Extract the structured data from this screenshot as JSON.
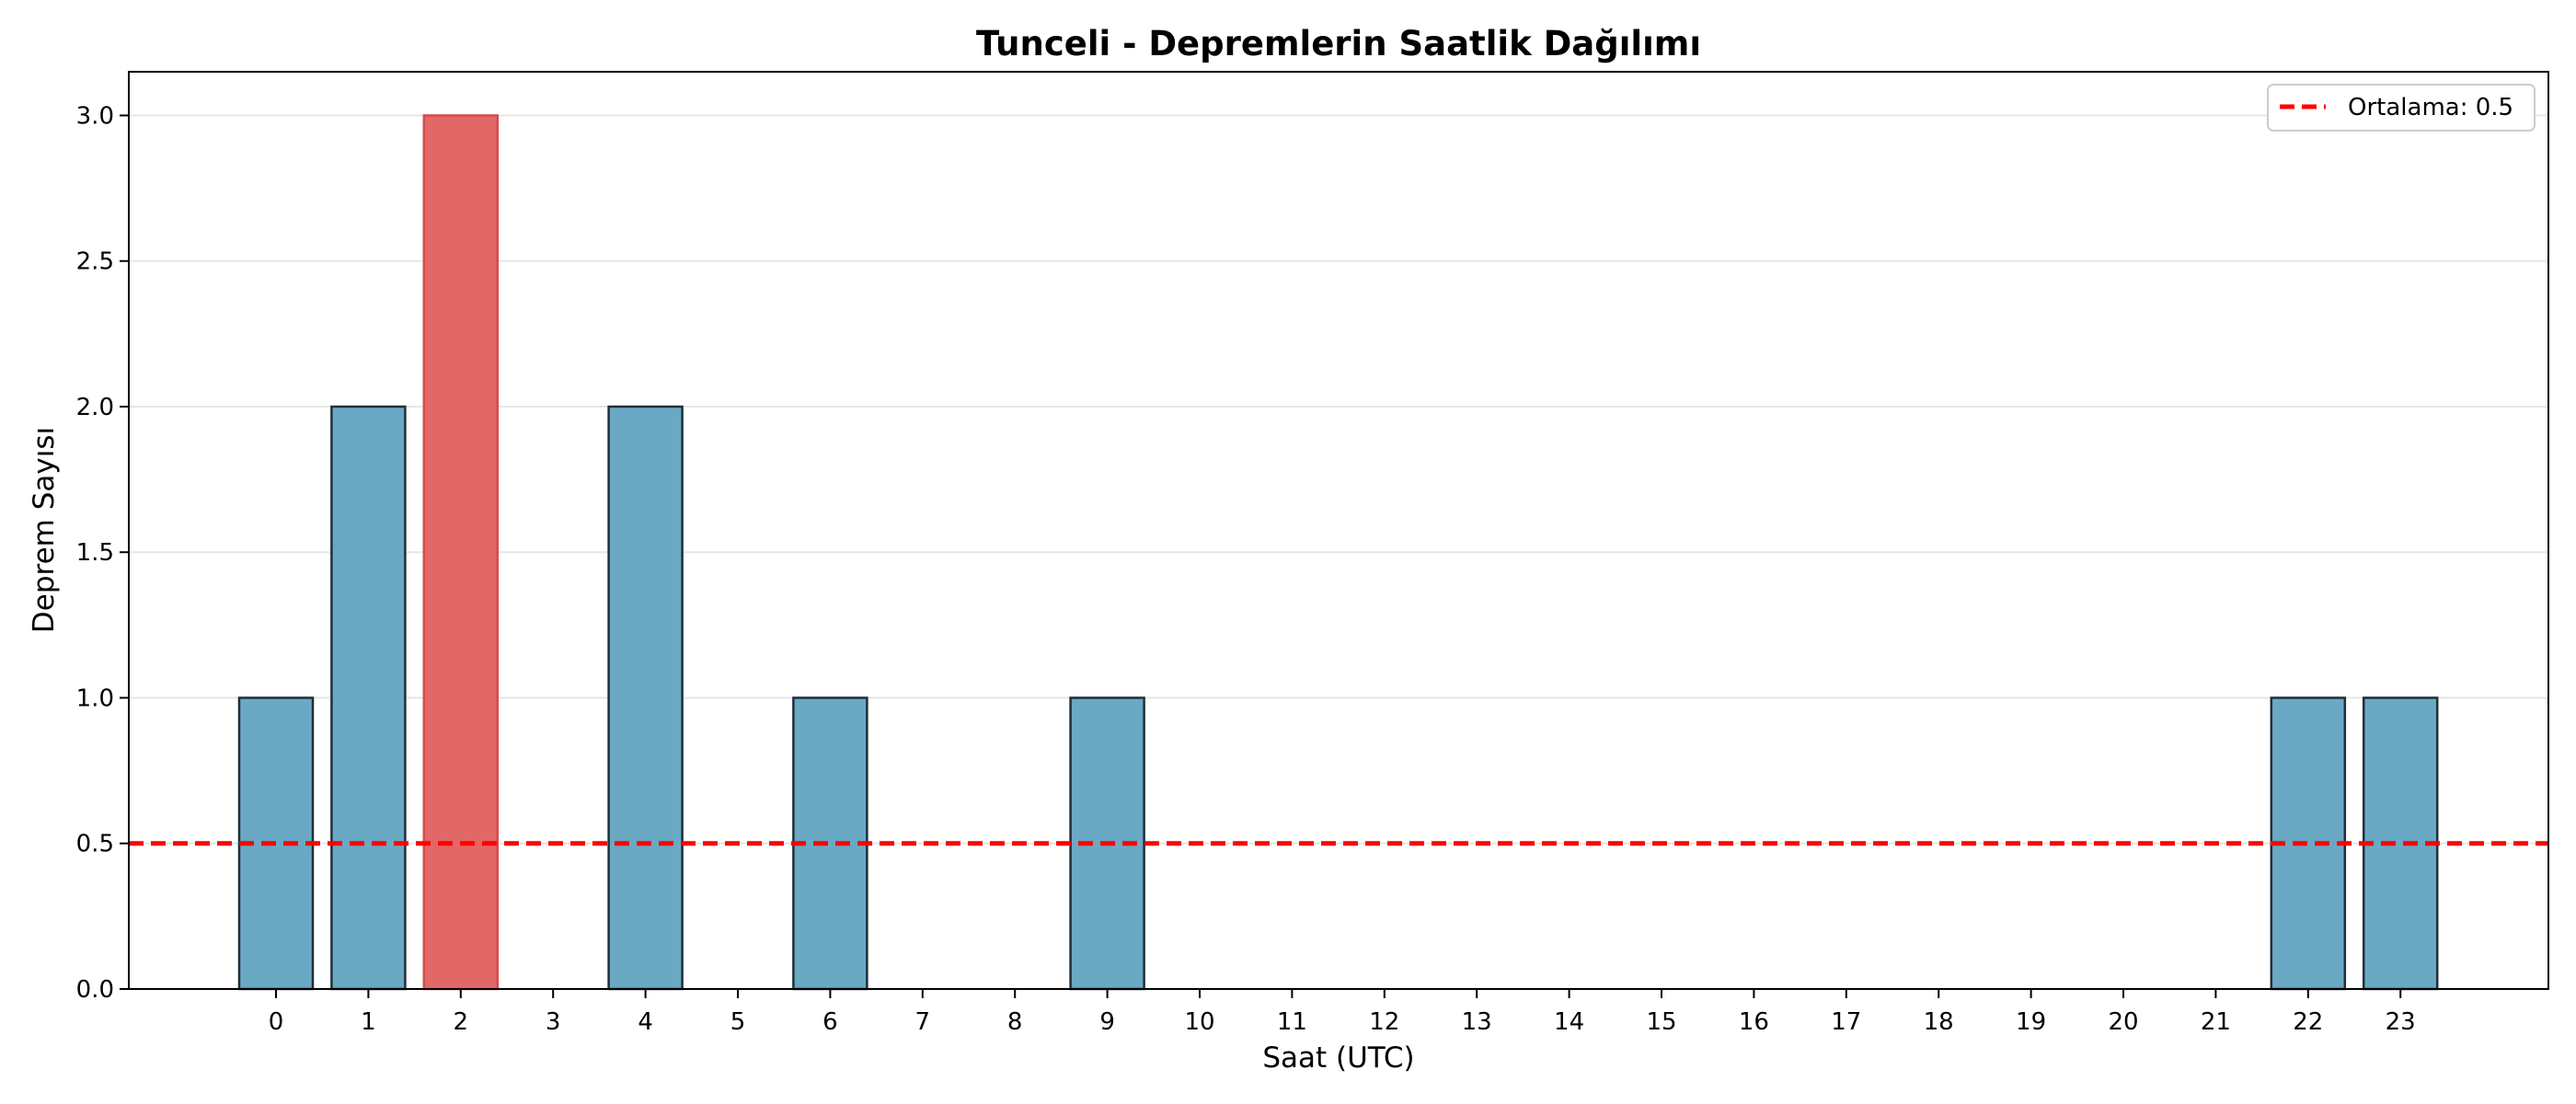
{
  "chart_data": {
    "type": "bar",
    "title": "Tunceli - Depremlerin Saatlik Dağılımı",
    "xlabel": "Saat (UTC)",
    "ylabel": "Deprem Sayısı",
    "categories": [
      "0",
      "1",
      "2",
      "3",
      "4",
      "5",
      "6",
      "7",
      "8",
      "9",
      "10",
      "11",
      "12",
      "13",
      "14",
      "15",
      "16",
      "17",
      "18",
      "19",
      "20",
      "21",
      "22",
      "23"
    ],
    "values": [
      1,
      2,
      3,
      0,
      2,
      0,
      1,
      0,
      0,
      1,
      0,
      0,
      0,
      0,
      0,
      0,
      0,
      0,
      0,
      0,
      0,
      0,
      1,
      1
    ],
    "highlight_index": 2,
    "ylim": [
      0,
      3.15
    ],
    "yticks": [
      "0.0",
      "0.5",
      "1.0",
      "1.5",
      "2.0",
      "2.5",
      "3.0"
    ],
    "ytick_values": [
      0,
      0.5,
      1.0,
      1.5,
      2.0,
      2.5,
      3.0
    ],
    "mean_line": {
      "value": 0.5,
      "label": "Ortalama: 0.5"
    },
    "legend_placement": "top-right",
    "grid": "y",
    "colors": {
      "bar": "#6aa9c4",
      "bar_edge": "#1f2f3a",
      "highlight": "#e26868",
      "highlight_edge": "#d44b4b",
      "mean_line": "#ff0000",
      "grid": "#e6e6e6"
    }
  }
}
